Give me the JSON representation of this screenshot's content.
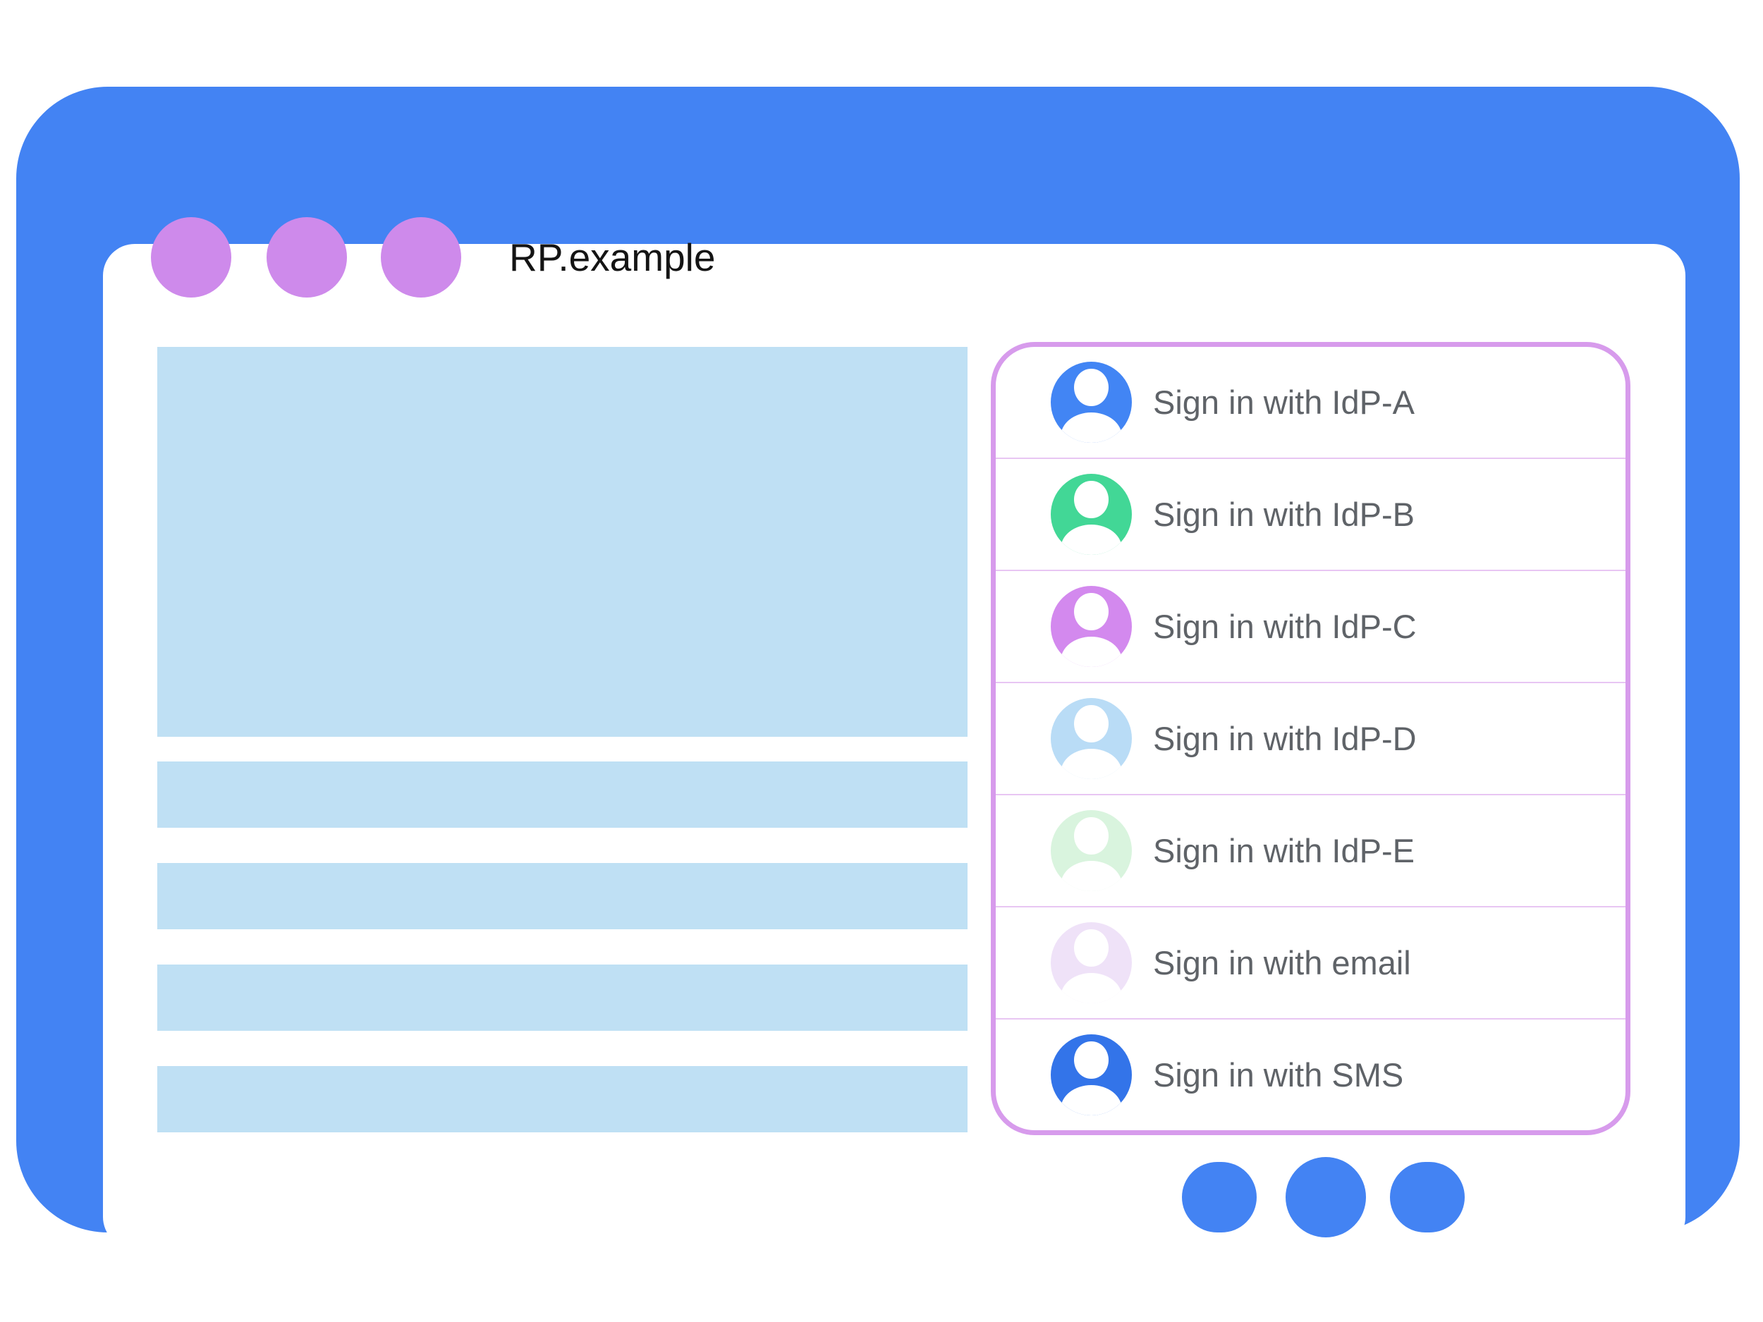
{
  "colors": {
    "frame_blue": "#4383F3",
    "placeholder_blue": "#BFE0F4",
    "window_dot_purple": "#CE8AEB",
    "dialog_border_purple": "#D79BEC",
    "divider_pink": "#E8C6F3",
    "label_gray": "#5F6368",
    "title_black": "#141414"
  },
  "browser": {
    "title": "RP.example",
    "window_dot_count": 3,
    "placeholder_blocks": {
      "hero_count": 1,
      "bar_count": 4
    }
  },
  "signin_dialog": {
    "options": [
      {
        "label": "Sign in with IdP-A",
        "icon": "person-icon",
        "avatar_color": "#4285F4"
      },
      {
        "label": "Sign in with IdP-B",
        "icon": "person-icon",
        "avatar_color": "#42D796"
      },
      {
        "label": "Sign in with IdP-C",
        "icon": "person-icon",
        "avatar_color": "#D389EE"
      },
      {
        "label": "Sign in with IdP-D",
        "icon": "person-icon",
        "avatar_color": "#B9DCF6"
      },
      {
        "label": "Sign in with IdP-E",
        "icon": "person-icon",
        "avatar_color": "#D9F4DE"
      },
      {
        "label": "Sign in with email",
        "icon": "person-icon",
        "avatar_color": "#EFE2F8"
      },
      {
        "label": "Sign in with SMS",
        "icon": "person-icon",
        "avatar_color": "#3374E9"
      }
    ]
  }
}
